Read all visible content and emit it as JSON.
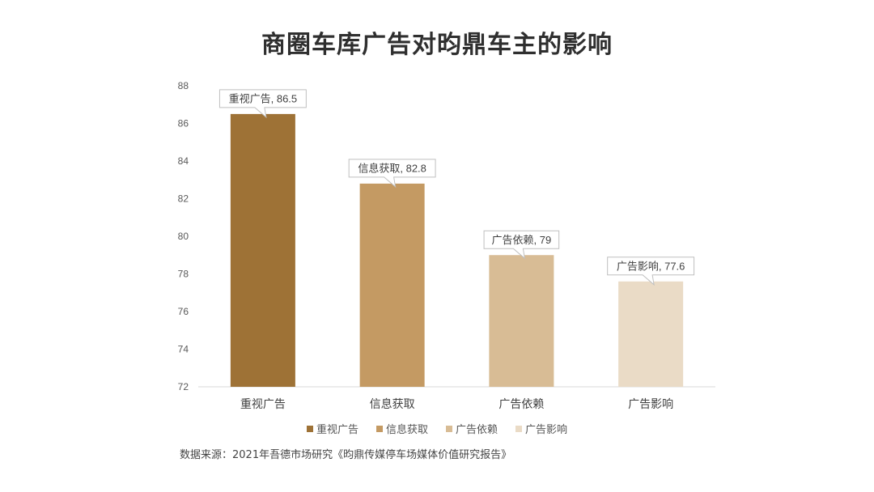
{
  "chart_data": {
    "type": "bar",
    "title": "商圈车库广告对昀鼎车主的影响",
    "categories": [
      "重视广告",
      "信息获取",
      "广告依赖",
      "广告影响"
    ],
    "values": [
      86.5,
      82.8,
      79,
      77.6
    ],
    "data_labels": [
      "重视广告, 86.5",
      "信息获取, 82.8",
      "广告依赖, 79",
      "广告影响, 77.6"
    ],
    "colors": [
      "#9e7236",
      "#c49a63",
      "#d8bc95",
      "#eadbc6"
    ],
    "ylim": [
      72,
      88
    ],
    "yticks": [
      "72",
      "74",
      "76",
      "78",
      "80",
      "82",
      "84",
      "86",
      "88"
    ],
    "legend": [
      "重视广告",
      "信息获取",
      "广告依赖",
      "广告影响"
    ],
    "legend_position": "bottom",
    "grid": false
  },
  "footer": {
    "source": "数据来源：2021年吾德市场研究《昀鼎传媒停车场媒体价值研究报告》"
  }
}
